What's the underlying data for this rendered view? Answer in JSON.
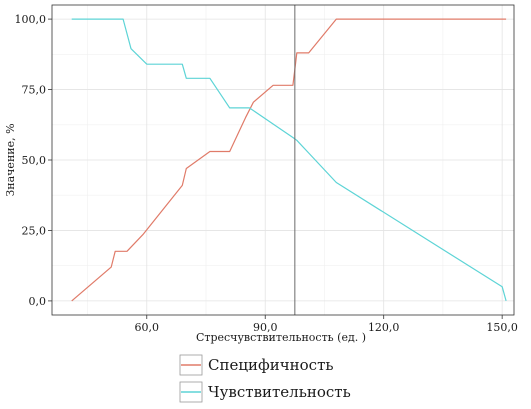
{
  "chart_data": {
    "type": "line",
    "xlabel": "Стресчувствительность  (ед. )",
    "ylabel": "Значение, %",
    "xlim": [
      36,
      153
    ],
    "ylim": [
      -5,
      105
    ],
    "x_ticks": [
      60,
      90,
      120,
      150
    ],
    "x_tick_labels": [
      "60,0",
      "90,0",
      "120,0",
      "150,0"
    ],
    "y_ticks": [
      0,
      25,
      50,
      75,
      100
    ],
    "y_tick_labels": [
      "0,0",
      "25,0",
      "50,0",
      "75,0",
      "100,0"
    ],
    "grid": true,
    "vline": 97.5,
    "legend_position": "bottom",
    "series": [
      {
        "name": "Специфичность",
        "color": "#e07b69",
        "points": [
          [
            41,
            0
          ],
          [
            51,
            12
          ],
          [
            52,
            17.6
          ],
          [
            55,
            17.6
          ],
          [
            59,
            23.5
          ],
          [
            69,
            41
          ],
          [
            70,
            47
          ],
          [
            76,
            53
          ],
          [
            81,
            53
          ],
          [
            85,
            65
          ],
          [
            87,
            70.5
          ],
          [
            92,
            76.5
          ],
          [
            97,
            76.5
          ],
          [
            97.5,
            82
          ],
          [
            98,
            88
          ],
          [
            101,
            88
          ],
          [
            108,
            100
          ],
          [
            151,
            100
          ]
        ]
      },
      {
        "name": "Чувствительность",
        "color": "#5dd4d6",
        "points": [
          [
            41,
            100
          ],
          [
            54,
            100
          ],
          [
            56,
            89.5
          ],
          [
            60,
            84
          ],
          [
            69,
            84
          ],
          [
            70,
            79
          ],
          [
            76,
            79
          ],
          [
            81,
            68.5
          ],
          [
            86,
            68.5
          ],
          [
            97,
            58
          ],
          [
            98,
            57
          ],
          [
            101,
            52.5
          ],
          [
            108,
            42
          ],
          [
            150,
            5
          ],
          [
            151,
            0
          ]
        ]
      }
    ]
  }
}
